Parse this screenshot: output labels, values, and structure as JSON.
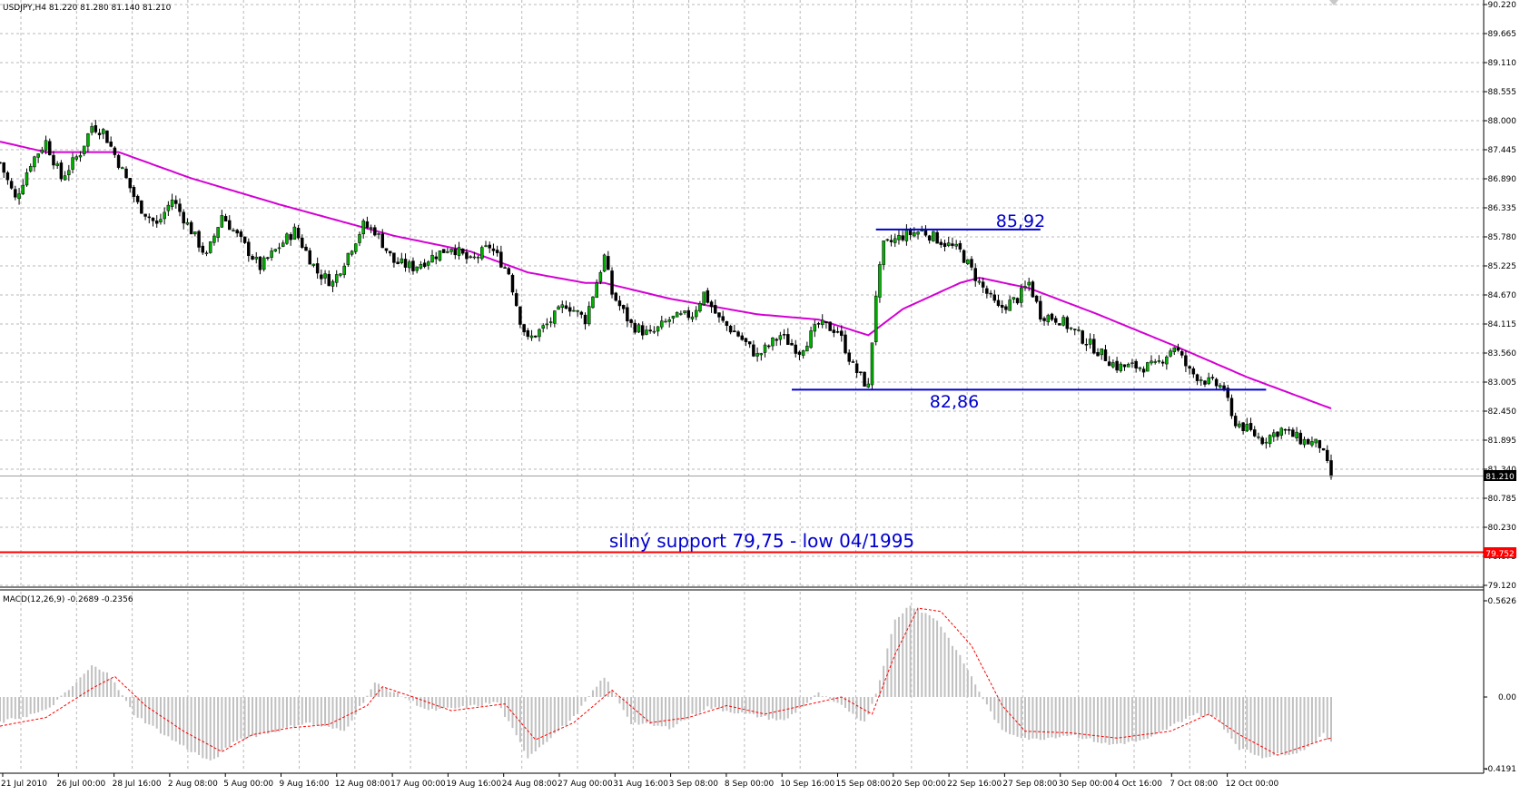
{
  "header": {
    "symbol_info": "USDJPY,H4  81.220 81.280 81.140 81.210",
    "macd_info": "MACD(12,26,9) -0.2689 -0.2356"
  },
  "price_axis": {
    "ticks": [
      "90.220",
      "89.665",
      "89.110",
      "88.555",
      "88.000",
      "87.445",
      "86.890",
      "86.335",
      "85.780",
      "85.225",
      "84.670",
      "84.115",
      "83.560",
      "83.005",
      "82.450",
      "81.895",
      "81.340",
      "80.785",
      "80.230",
      "79.675",
      "79.120"
    ],
    "current_price_tag": "81.210",
    "support_price_tag": "79.752"
  },
  "macd_axis": {
    "ticks": [
      "0.5626",
      "0.00",
      "-0.4191"
    ]
  },
  "time_axis": {
    "labels": [
      "21 Jul 2010",
      "26 Jul 00:00",
      "28 Jul 16:00",
      "2 Aug 08:00",
      "5 Aug 00:00",
      "9 Aug 16:00",
      "12 Aug 08:00",
      "17 Aug 00:00",
      "19 Aug 16:00",
      "24 Aug 08:00",
      "27 Aug 00:00",
      "31 Aug 16:00",
      "3 Sep 08:00",
      "8 Sep 00:00",
      "10 Sep 16:00",
      "15 Sep 08:00",
      "20 Sep 00:00",
      "22 Sep 16:00",
      "27 Sep 08:00",
      "30 Sep 00:00",
      "4 Oct 16:00",
      "7 Oct 08:00",
      "12 Oct 00:00"
    ]
  },
  "annotations": {
    "resistance_label": "85,92",
    "support_label": "82,86",
    "strong_support_text": "silný support 79,75 - low 04/1995"
  },
  "colors": {
    "bull_candle": "#00b000",
    "bear_candle": "#000000",
    "moving_average": "#d400d4",
    "level_lines": "#0000cc",
    "support_line": "#ff0000",
    "macd_histogram": "#c0c0c0",
    "macd_signal": "#ff0000"
  },
  "chart_data": [
    {
      "type": "candlestick",
      "symbol": "USDJPY",
      "timeframe": "H4",
      "ylim": [
        79.12,
        90.22
      ],
      "current_price": 81.21,
      "levels": [
        {
          "label": "85,92",
          "value": 85.92
        },
        {
          "label": "82,86",
          "value": 82.86
        },
        {
          "label": "79,75",
          "value": 79.752
        }
      ],
      "close_path": [
        {
          "bar": 0,
          "y": 87.2
        },
        {
          "bar": 4,
          "y": 86.5
        },
        {
          "bar": 8,
          "y": 87.2
        },
        {
          "bar": 12,
          "y": 87.6
        },
        {
          "bar": 16,
          "y": 86.9
        },
        {
          "bar": 21,
          "y": 87.4
        },
        {
          "bar": 24,
          "y": 87.9
        },
        {
          "bar": 27,
          "y": 87.8
        },
        {
          "bar": 31,
          "y": 87.2
        },
        {
          "bar": 36,
          "y": 86.4
        },
        {
          "bar": 41,
          "y": 86.0
        },
        {
          "bar": 45,
          "y": 86.5
        },
        {
          "bar": 50,
          "y": 85.9
        },
        {
          "bar": 54,
          "y": 85.4
        },
        {
          "bar": 58,
          "y": 86.2
        },
        {
          "bar": 63,
          "y": 85.7
        },
        {
          "bar": 68,
          "y": 85.2
        },
        {
          "bar": 73,
          "y": 85.6
        },
        {
          "bar": 77,
          "y": 85.9
        },
        {
          "bar": 83,
          "y": 85.1
        },
        {
          "bar": 87,
          "y": 84.9
        },
        {
          "bar": 92,
          "y": 85.6
        },
        {
          "bar": 95,
          "y": 86.0
        },
        {
          "bar": 98,
          "y": 85.9
        },
        {
          "bar": 103,
          "y": 85.3
        },
        {
          "bar": 108,
          "y": 85.2
        },
        {
          "bar": 113,
          "y": 85.4
        },
        {
          "bar": 118,
          "y": 85.6
        },
        {
          "bar": 123,
          "y": 85.3
        },
        {
          "bar": 128,
          "y": 85.6
        },
        {
          "bar": 133,
          "y": 85.1
        },
        {
          "bar": 136,
          "y": 84.2
        },
        {
          "bar": 138,
          "y": 83.8
        },
        {
          "bar": 143,
          "y": 84.1
        },
        {
          "bar": 148,
          "y": 84.5
        },
        {
          "bar": 153,
          "y": 84.2
        },
        {
          "bar": 158,
          "y": 85.4
        },
        {
          "bar": 160,
          "y": 84.7
        },
        {
          "bar": 165,
          "y": 84.1
        },
        {
          "bar": 170,
          "y": 83.9
        },
        {
          "bar": 175,
          "y": 84.2
        },
        {
          "bar": 181,
          "y": 84.3
        },
        {
          "bar": 184,
          "y": 84.7
        },
        {
          "bar": 188,
          "y": 84.2
        },
        {
          "bar": 193,
          "y": 83.9
        },
        {
          "bar": 198,
          "y": 83.5
        },
        {
          "bar": 204,
          "y": 83.9
        },
        {
          "bar": 209,
          "y": 83.6
        },
        {
          "bar": 214,
          "y": 84.1
        },
        {
          "bar": 219,
          "y": 84.0
        },
        {
          "bar": 223,
          "y": 83.3
        },
        {
          "bar": 227,
          "y": 82.9
        },
        {
          "bar": 229,
          "y": 84.7
        },
        {
          "bar": 231,
          "y": 85.6
        },
        {
          "bar": 236,
          "y": 85.8
        },
        {
          "bar": 241,
          "y": 85.9
        },
        {
          "bar": 246,
          "y": 85.7
        },
        {
          "bar": 251,
          "y": 85.5
        },
        {
          "bar": 256,
          "y": 84.9
        },
        {
          "bar": 261,
          "y": 84.4
        },
        {
          "bar": 266,
          "y": 84.6
        },
        {
          "bar": 269,
          "y": 84.9
        },
        {
          "bar": 272,
          "y": 84.3
        },
        {
          "bar": 277,
          "y": 84.2
        },
        {
          "bar": 282,
          "y": 83.9
        },
        {
          "bar": 287,
          "y": 83.6
        },
        {
          "bar": 292,
          "y": 83.3
        },
        {
          "bar": 297,
          "y": 83.3
        },
        {
          "bar": 302,
          "y": 83.3
        },
        {
          "bar": 307,
          "y": 83.7
        },
        {
          "bar": 311,
          "y": 83.2
        },
        {
          "bar": 316,
          "y": 83.0
        },
        {
          "bar": 320,
          "y": 82.9
        },
        {
          "bar": 322,
          "y": 82.3
        },
        {
          "bar": 326,
          "y": 82.1
        },
        {
          "bar": 330,
          "y": 81.9
        },
        {
          "bar": 335,
          "y": 82.1
        },
        {
          "bar": 340,
          "y": 81.9
        },
        {
          "bar": 345,
          "y": 81.8
        },
        {
          "bar": 348,
          "y": 81.2
        }
      ],
      "moving_average": [
        {
          "bar": 0,
          "y": 87.6
        },
        {
          "bar": 12,
          "y": 87.4
        },
        {
          "bar": 31,
          "y": 87.4
        },
        {
          "bar": 50,
          "y": 86.9
        },
        {
          "bar": 73,
          "y": 86.4
        },
        {
          "bar": 103,
          "y": 85.8
        },
        {
          "bar": 123,
          "y": 85.5
        },
        {
          "bar": 138,
          "y": 85.1
        },
        {
          "bar": 153,
          "y": 84.9
        },
        {
          "bar": 158,
          "y": 84.9
        },
        {
          "bar": 175,
          "y": 84.6
        },
        {
          "bar": 198,
          "y": 84.3
        },
        {
          "bar": 214,
          "y": 84.2
        },
        {
          "bar": 227,
          "y": 83.9
        },
        {
          "bar": 236,
          "y": 84.4
        },
        {
          "bar": 251,
          "y": 84.9
        },
        {
          "bar": 256,
          "y": 85.0
        },
        {
          "bar": 269,
          "y": 84.8
        },
        {
          "bar": 287,
          "y": 84.3
        },
        {
          "bar": 307,
          "y": 83.7
        },
        {
          "bar": 326,
          "y": 83.1
        },
        {
          "bar": 348,
          "y": 82.5
        }
      ]
    },
    {
      "type": "bar",
      "title": "MACD(12,26,9) -0.2689 -0.2356",
      "ylim": [
        -0.4191,
        0.5626
      ],
      "histogram_path": [
        {
          "bar": 0,
          "y": -0.15
        },
        {
          "bar": 12,
          "y": -0.08
        },
        {
          "bar": 18,
          "y": 0.04
        },
        {
          "bar": 24,
          "y": 0.18
        },
        {
          "bar": 28,
          "y": 0.15
        },
        {
          "bar": 35,
          "y": -0.1
        },
        {
          "bar": 45,
          "y": -0.25
        },
        {
          "bar": 55,
          "y": -0.38
        },
        {
          "bar": 62,
          "y": -0.25
        },
        {
          "bar": 72,
          "y": -0.2
        },
        {
          "bar": 80,
          "y": -0.15
        },
        {
          "bar": 90,
          "y": -0.2
        },
        {
          "bar": 98,
          "y": 0.08
        },
        {
          "bar": 104,
          "y": 0.02
        },
        {
          "bar": 112,
          "y": -0.08
        },
        {
          "bar": 122,
          "y": -0.06
        },
        {
          "bar": 130,
          "y": -0.03
        },
        {
          "bar": 138,
          "y": -0.35
        },
        {
          "bar": 150,
          "y": -0.12
        },
        {
          "bar": 158,
          "y": 0.12
        },
        {
          "bar": 165,
          "y": -0.15
        },
        {
          "bar": 175,
          "y": -0.18
        },
        {
          "bar": 185,
          "y": -0.06
        },
        {
          "bar": 195,
          "y": -0.1
        },
        {
          "bar": 205,
          "y": -0.14
        },
        {
          "bar": 214,
          "y": 0.02
        },
        {
          "bar": 222,
          "y": -0.08
        },
        {
          "bar": 226,
          "y": -0.15
        },
        {
          "bar": 229,
          "y": 0.02
        },
        {
          "bar": 234,
          "y": 0.45
        },
        {
          "bar": 238,
          "y": 0.54
        },
        {
          "bar": 245,
          "y": 0.45
        },
        {
          "bar": 252,
          "y": 0.2
        },
        {
          "bar": 258,
          "y": -0.05
        },
        {
          "bar": 262,
          "y": -0.2
        },
        {
          "bar": 270,
          "y": -0.25
        },
        {
          "bar": 280,
          "y": -0.22
        },
        {
          "bar": 290,
          "y": -0.28
        },
        {
          "bar": 300,
          "y": -0.25
        },
        {
          "bar": 312,
          "y": -0.1
        },
        {
          "bar": 318,
          "y": -0.12
        },
        {
          "bar": 324,
          "y": -0.3
        },
        {
          "bar": 330,
          "y": -0.35
        },
        {
          "bar": 340,
          "y": -0.32
        },
        {
          "bar": 346,
          "y": -0.22
        },
        {
          "bar": 348,
          "y": -0.27
        }
      ],
      "signal_path": [
        {
          "bar": 0,
          "y": -0.17
        },
        {
          "bar": 12,
          "y": -0.12
        },
        {
          "bar": 24,
          "y": 0.05
        },
        {
          "bar": 30,
          "y": 0.12
        },
        {
          "bar": 38,
          "y": -0.05
        },
        {
          "bar": 48,
          "y": -0.2
        },
        {
          "bar": 58,
          "y": -0.32
        },
        {
          "bar": 66,
          "y": -0.22
        },
        {
          "bar": 76,
          "y": -0.18
        },
        {
          "bar": 86,
          "y": -0.16
        },
        {
          "bar": 96,
          "y": -0.05
        },
        {
          "bar": 100,
          "y": 0.06
        },
        {
          "bar": 108,
          "y": 0.0
        },
        {
          "bar": 118,
          "y": -0.08
        },
        {
          "bar": 132,
          "y": -0.04
        },
        {
          "bar": 140,
          "y": -0.25
        },
        {
          "bar": 150,
          "y": -0.15
        },
        {
          "bar": 160,
          "y": 0.04
        },
        {
          "bar": 170,
          "y": -0.15
        },
        {
          "bar": 180,
          "y": -0.12
        },
        {
          "bar": 190,
          "y": -0.05
        },
        {
          "bar": 200,
          "y": -0.1
        },
        {
          "bar": 212,
          "y": -0.04
        },
        {
          "bar": 220,
          "y": 0.0
        },
        {
          "bar": 228,
          "y": -0.1
        },
        {
          "bar": 234,
          "y": 0.25
        },
        {
          "bar": 240,
          "y": 0.52
        },
        {
          "bar": 246,
          "y": 0.5
        },
        {
          "bar": 254,
          "y": 0.3
        },
        {
          "bar": 262,
          "y": -0.05
        },
        {
          "bar": 268,
          "y": -0.2
        },
        {
          "bar": 280,
          "y": -0.21
        },
        {
          "bar": 292,
          "y": -0.24
        },
        {
          "bar": 306,
          "y": -0.2
        },
        {
          "bar": 316,
          "y": -0.1
        },
        {
          "bar": 324,
          "y": -0.22
        },
        {
          "bar": 334,
          "y": -0.34
        },
        {
          "bar": 346,
          "y": -0.25
        },
        {
          "bar": 348,
          "y": -0.24
        }
      ]
    }
  ]
}
